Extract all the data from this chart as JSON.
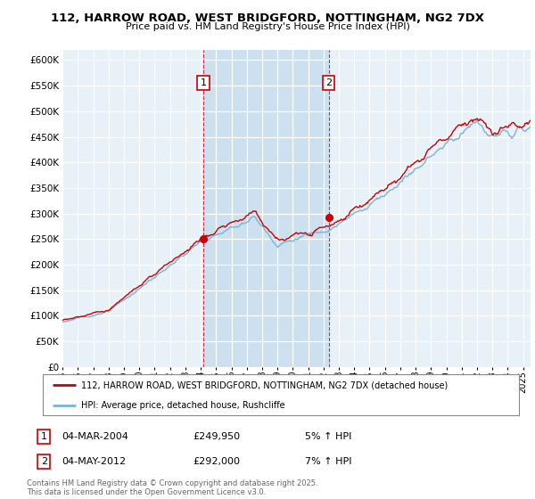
{
  "title": "112, HARROW ROAD, WEST BRIDGFORD, NOTTINGHAM, NG2 7DX",
  "subtitle": "Price paid vs. HM Land Registry's House Price Index (HPI)",
  "legend_line1": "112, HARROW ROAD, WEST BRIDGFORD, NOTTINGHAM, NG2 7DX (detached house)",
  "legend_line2": "HPI: Average price, detached house, Rushcliffe",
  "annotation1_label": "1",
  "annotation1_date": "04-MAR-2004",
  "annotation1_price": "£249,950",
  "annotation1_hpi": "5% ↑ HPI",
  "annotation2_label": "2",
  "annotation2_date": "04-MAY-2012",
  "annotation2_price": "£292,000",
  "annotation2_hpi": "7% ↑ HPI",
  "footer": "Contains HM Land Registry data © Crown copyright and database right 2025.\nThis data is licensed under the Open Government Licence v3.0.",
  "sale1_year": 2004.17,
  "sale1_price": 249950,
  "sale2_year": 2012.34,
  "sale2_price": 292000,
  "hpi_color": "#7ab5d8",
  "property_color": "#cc0000",
  "background_color": "#ffffff",
  "plot_bg_color": "#e8f0f8",
  "highlight_color": "#cce0f0",
  "ylim_min": 0,
  "ylim_max": 620000,
  "xlim_min": 1995.0,
  "xlim_max": 2025.5,
  "ytick_step": 50000,
  "title_fontsize": 9.5,
  "subtitle_fontsize": 8.0
}
